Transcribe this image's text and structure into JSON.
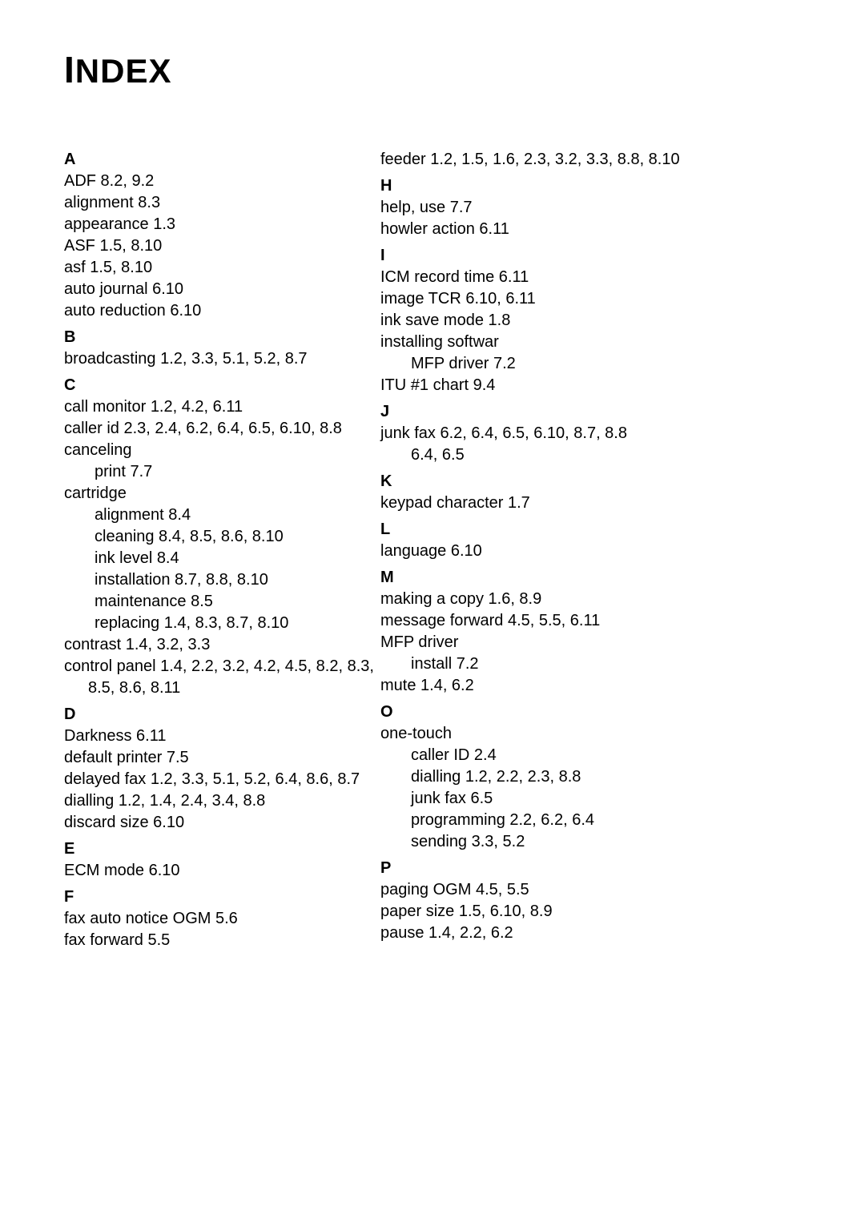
{
  "title": "INDEX",
  "left": {
    "A": {
      "letter": "A",
      "items": [
        {
          "text": "ADF 8.2, 9.2"
        },
        {
          "text": "alignment 8.3"
        },
        {
          "text": "appearance 1.3"
        },
        {
          "text": "ASF 1.5, 8.10"
        },
        {
          "text": "asf 1.5, 8.10"
        },
        {
          "text": "auto journal 6.10"
        },
        {
          "text": "auto reduction 6.10"
        }
      ]
    },
    "B": {
      "letter": "B",
      "items": [
        {
          "text": "broadcasting 1.2, 3.3, 5.1, 5.2, 8.7"
        }
      ]
    },
    "C": {
      "letter": "C",
      "items": [
        {
          "text": "call monitor 1.2, 4.2, 6.11"
        },
        {
          "text": "caller id 2.3, 2.4, 6.2, 6.4, 6.5, 6.10, 8.8"
        },
        {
          "text": "canceling"
        },
        {
          "text": "print 7.7",
          "sub": true
        },
        {
          "text": "cartridge"
        },
        {
          "text": "alignment 8.4",
          "sub": true
        },
        {
          "text": "cleaning 8.4, 8.5, 8.6, 8.10",
          "sub": true
        },
        {
          "text": "ink level 8.4",
          "sub": true
        },
        {
          "text": "installation 8.7, 8.8, 8.10",
          "sub": true
        },
        {
          "text": "maintenance 8.5",
          "sub": true
        },
        {
          "text": "replacing 1.4, 8.3, 8.7, 8.10",
          "sub": true
        },
        {
          "text": "contrast 1.4, 3.2, 3.3"
        },
        {
          "text": "control panel 1.4, 2.2, 3.2, 4.2, 4.5, 8.2, 8.3, 8.5, 8.6, 8.11",
          "hang": true
        }
      ]
    },
    "D": {
      "letter": "D",
      "items": [
        {
          "text": "Darkness 6.11"
        },
        {
          "text": "default printer 7.5"
        },
        {
          "text": "delayed fax 1.2, 3.3, 5.1, 5.2, 6.4, 8.6, 8.7",
          "hang": true
        },
        {
          "text": "dialling 1.2, 1.4, 2.4, 3.4, 8.8"
        },
        {
          "text": "discard size 6.10"
        }
      ]
    },
    "E": {
      "letter": "E",
      "items": [
        {
          "text": "ECM mode 6.10"
        }
      ]
    },
    "F": {
      "letter": "F",
      "items": [
        {
          "text": "fax auto notice OGM 5.6"
        },
        {
          "text": "fax forward 5.5"
        }
      ]
    }
  },
  "right": {
    "top": {
      "items": [
        {
          "text": "feeder 1.2, 1.5, 1.6, 2.3, 3.2, 3.3, 8.8, 8.10",
          "hang": true
        }
      ]
    },
    "H": {
      "letter": "H",
      "items": [
        {
          "text": "help, use 7.7"
        },
        {
          "text": "howler action 6.11"
        }
      ]
    },
    "I": {
      "letter": "I",
      "items": [
        {
          "text": "ICM record time 6.11"
        },
        {
          "text": "image TCR 6.10, 6.11"
        },
        {
          "text": "ink save mode 1.8"
        },
        {
          "text": "installing softwar"
        },
        {
          "text": "MFP driver 7.2",
          "sub": true
        },
        {
          "text": "ITU #1 chart 9.4"
        }
      ]
    },
    "J": {
      "letter": "J",
      "items": [
        {
          "text": "junk fax 6.2, 6.4, 6.5, 6.10, 8.7, 8.8"
        },
        {
          "text": " 6.4, 6.5",
          "sub": true
        }
      ]
    },
    "K": {
      "letter": "K",
      "items": [
        {
          "text": "keypad character 1.7"
        }
      ]
    },
    "L": {
      "letter": "L",
      "items": [
        {
          "text": "language 6.10"
        }
      ]
    },
    "M": {
      "letter": "M",
      "items": [
        {
          "text": "making a copy 1.6, 8.9"
        },
        {
          "text": "message forward 4.5, 5.5, 6.11"
        },
        {
          "text": "MFP driver"
        },
        {
          "text": "install 7.2",
          "sub": true
        },
        {
          "text": "mute 1.4, 6.2"
        }
      ]
    },
    "O": {
      "letter": "O",
      "items": [
        {
          "text": "one-touch"
        },
        {
          "text": "caller ID 2.4",
          "sub": true
        },
        {
          "text": "dialling 1.2, 2.2, 2.3, 8.8",
          "sub": true
        },
        {
          "text": "junk fax 6.5",
          "sub": true
        },
        {
          "text": "programming 2.2, 6.2, 6.4",
          "sub": true
        },
        {
          "text": "sending 3.3, 5.2",
          "sub": true
        }
      ]
    },
    "P": {
      "letter": "P",
      "items": [
        {
          "text": "paging OGM 4.5, 5.5"
        },
        {
          "text": "paper size 1.5, 6.10, 8.9"
        },
        {
          "text": "pause 1.4, 2.2, 6.2"
        }
      ]
    }
  }
}
